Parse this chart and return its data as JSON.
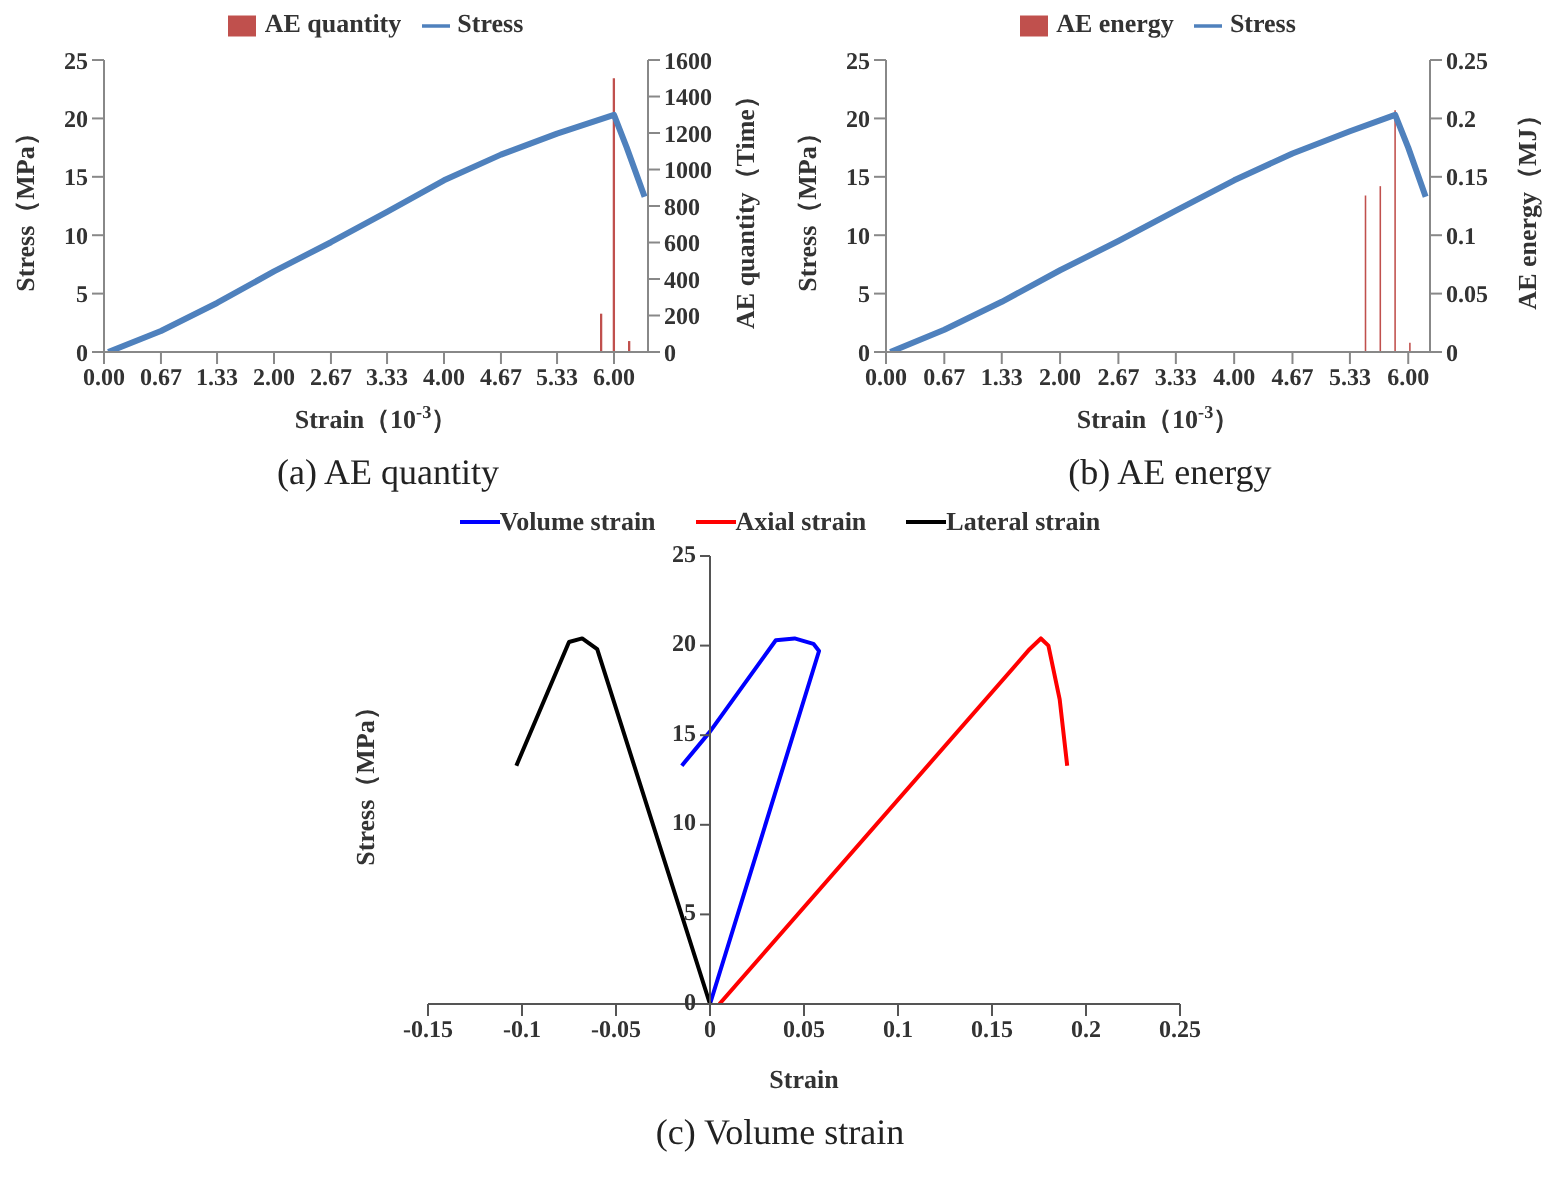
{
  "chart_data": [
    {
      "type": "bar",
      "title": "(a) AE quantity",
      "xlabel": "Strain（10$^{-3}$）",
      "ylabel": "Stress（MPa）",
      "y2label": "AE quantity（Time）",
      "legend": "top",
      "xlim": [
        0,
        6.4
      ],
      "xticks": [
        {
          "value": 0,
          "label": "0.00"
        },
        {
          "value": 0.67,
          "label": "0.67"
        },
        {
          "value": 1.33,
          "label": "1.33"
        },
        {
          "value": 2,
          "label": "2.00"
        },
        {
          "value": 2.67,
          "label": "2.67"
        },
        {
          "value": 3.33,
          "label": "3.33"
        },
        {
          "value": 4,
          "label": "4.00"
        },
        {
          "value": 4.67,
          "label": "4.67"
        },
        {
          "value": 5.33,
          "label": "5.33"
        },
        {
          "value": 6,
          "label": "6.00"
        }
      ],
      "ylim": [
        0,
        25
      ],
      "yticks": [
        0,
        5,
        10,
        15,
        20,
        25
      ],
      "y2lim": [
        0,
        1600
      ],
      "y2ticks": [
        0,
        200,
        400,
        600,
        800,
        1000,
        1200,
        1400,
        1600
      ],
      "series": [
        {
          "name": "AE quantity",
          "type": "bar",
          "axis": "y2",
          "color": "#c0504d",
          "x": [
            5.85,
            6.0,
            6.18
          ],
          "values": [
            210,
            1500,
            60
          ]
        },
        {
          "name": "Stress",
          "type": "line",
          "color": "#4f81bd",
          "x": [
            0.05,
            0.67,
            1.33,
            2.0,
            2.67,
            3.33,
            4.0,
            4.67,
            5.33,
            6.0,
            6.15,
            6.36
          ],
          "values": [
            0,
            1.8,
            4.2,
            6.9,
            9.4,
            12.0,
            14.7,
            16.9,
            18.7,
            20.3,
            17.5,
            13.3
          ]
        }
      ]
    },
    {
      "type": "bar",
      "title": "(b) AE energy",
      "xlabel": "Strain（10$^{-3}$）",
      "ylabel": "Stress（MPa）",
      "y2label": "AE energy（MJ）",
      "legend": "top",
      "xlim": [
        0,
        6.25
      ],
      "xticks": [
        {
          "value": 0,
          "label": "0.00"
        },
        {
          "value": 0.67,
          "label": "0.67"
        },
        {
          "value": 1.33,
          "label": "1.33"
        },
        {
          "value": 2,
          "label": "2.00"
        },
        {
          "value": 2.67,
          "label": "2.67"
        },
        {
          "value": 3.33,
          "label": "3.33"
        },
        {
          "value": 4,
          "label": "4.00"
        },
        {
          "value": 4.67,
          "label": "4.67"
        },
        {
          "value": 5.33,
          "label": "5.33"
        },
        {
          "value": 6,
          "label": "6.00"
        }
      ],
      "ylim": [
        0,
        25
      ],
      "yticks": [
        0,
        5,
        10,
        15,
        20,
        25
      ],
      "y2lim": [
        0,
        0.25
      ],
      "y2ticks": [
        0,
        0.05,
        0.1,
        0.15,
        0.2,
        0.25
      ],
      "series": [
        {
          "name": "AE energy",
          "type": "bar",
          "axis": "y2",
          "color": "#c0504d",
          "x": [
            5.51,
            5.68,
            5.85,
            6.02
          ],
          "values": [
            0.134,
            0.142,
            0.207,
            0.008
          ]
        },
        {
          "name": "Stress",
          "type": "line",
          "color": "#4f81bd",
          "x": [
            0.05,
            0.67,
            1.33,
            2.0,
            2.67,
            3.33,
            4.0,
            4.67,
            5.33,
            5.85,
            6.0,
            6.2
          ],
          "values": [
            0,
            1.9,
            4.3,
            7.0,
            9.5,
            12.1,
            14.7,
            17.0,
            18.9,
            20.3,
            17.5,
            13.3
          ]
        }
      ]
    },
    {
      "type": "line",
      "title": "(c) Volume strain",
      "xlabel": "Strain",
      "ylabel": "Stress（MPa）",
      "legend": "top",
      "xlim": [
        -0.15,
        0.25
      ],
      "xticks": [
        -0.15,
        -0.1,
        -0.05,
        0,
        0.05,
        0.1,
        0.15,
        0.2,
        0.25
      ],
      "ylim": [
        0,
        25
      ],
      "yticks": [
        0,
        5,
        10,
        15,
        20,
        25
      ],
      "series": [
        {
          "name": "Volume strain",
          "color": "#0000ff",
          "x": [
            0,
            0.058,
            0.055,
            0.045,
            0.035,
            0,
            -0.015
          ],
          "values": [
            0,
            19.7,
            20.1,
            20.4,
            20.3,
            15.2,
            13.3
          ]
        },
        {
          "name": "Axial strain",
          "color": "#ff0000",
          "x": [
            0.005,
            0.17,
            0.176,
            0.18,
            0.186,
            0.19
          ],
          "values": [
            0,
            19.8,
            20.4,
            20.0,
            17.0,
            13.3
          ]
        },
        {
          "name": "Lateral strain",
          "color": "#000000",
          "x": [
            0,
            -0.06,
            -0.068,
            -0.075,
            -0.103
          ],
          "values": [
            0,
            19.8,
            20.4,
            20.2,
            13.3
          ]
        }
      ]
    }
  ]
}
